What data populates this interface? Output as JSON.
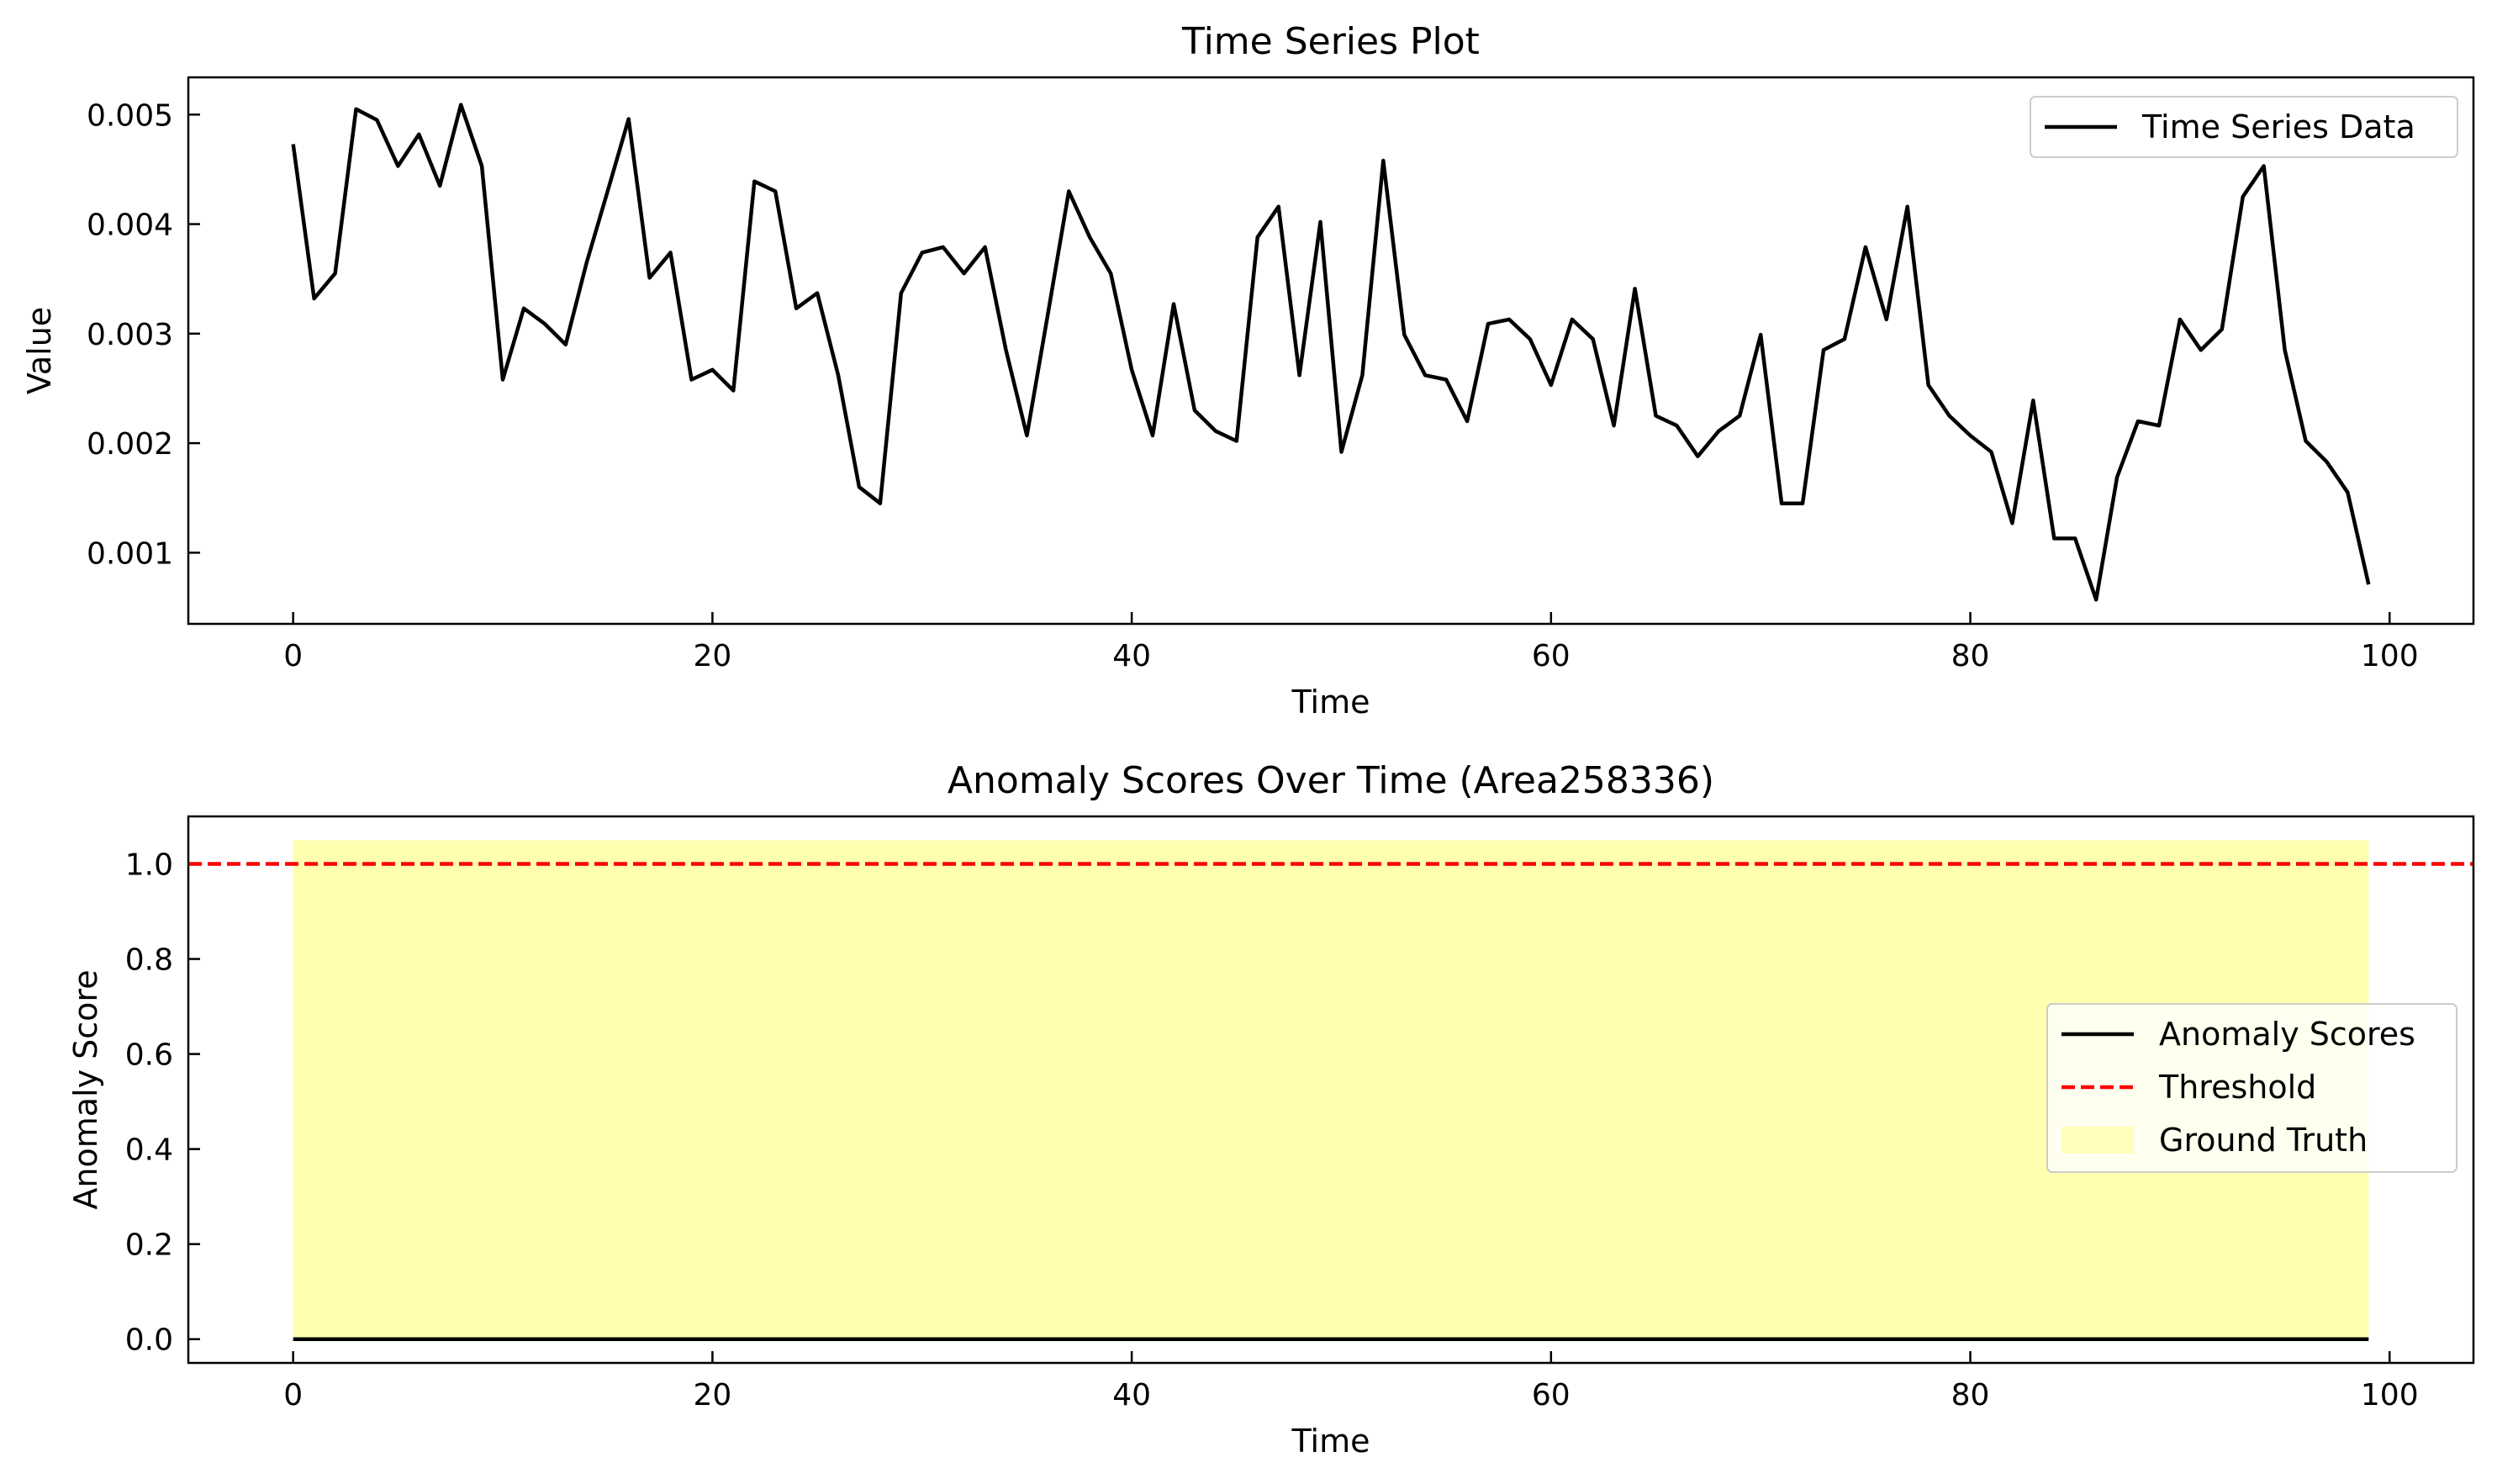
{
  "chart_data": [
    {
      "type": "line",
      "title": "Time Series Plot",
      "xlabel": "Time",
      "ylabel": "Value",
      "xlim": [
        -5,
        104
      ],
      "ylim": [
        0.00035,
        0.00534
      ],
      "xticks": [
        0,
        20,
        40,
        60,
        80,
        100
      ],
      "xtick_labels": [
        "0",
        "20",
        "40",
        "60",
        "80",
        "100"
      ],
      "yticks": [
        0.001,
        0.002,
        0.003,
        0.004,
        0.005
      ],
      "ytick_labels": [
        "0.001",
        "0.002",
        "0.003",
        "0.004",
        "0.005"
      ],
      "legend_position": "upper right",
      "series": [
        {
          "name": "Time Series Data",
          "color": "#000000",
          "x": [
            0,
            1,
            2,
            3,
            4,
            5,
            6,
            7,
            8,
            9,
            10,
            11,
            12,
            13,
            14,
            15,
            16,
            17,
            18,
            19,
            20,
            21,
            22,
            23,
            24,
            25,
            26,
            27,
            28,
            29,
            30,
            31,
            32,
            33,
            34,
            35,
            36,
            37,
            38,
            39,
            40,
            41,
            42,
            43,
            44,
            45,
            46,
            47,
            48,
            49,
            50,
            51,
            52,
            53,
            54,
            55,
            56,
            57,
            58,
            59,
            60,
            61,
            62,
            63,
            64,
            65,
            66,
            67,
            68,
            69,
            70,
            71,
            72,
            73,
            74,
            75,
            76,
            77,
            78,
            79,
            80,
            81,
            82,
            83,
            84,
            85,
            86,
            87,
            88,
            89,
            90,
            91,
            92,
            93,
            94,
            95,
            96,
            97,
            98,
            99
          ],
          "y": [
            0.00473,
            0.00332,
            0.00355,
            0.00505,
            0.00495,
            0.00453,
            0.00482,
            0.00435,
            0.00509,
            0.00453,
            0.00258,
            0.00323,
            0.00309,
            0.0029,
            0.00365,
            0.0043,
            0.00496,
            0.00351,
            0.00374,
            0.00258,
            0.00267,
            0.00248,
            0.00439,
            0.0043,
            0.00323,
            0.00337,
            0.00262,
            0.0016,
            0.00145,
            0.00337,
            0.00374,
            0.00379,
            0.00355,
            0.00379,
            0.00285,
            0.00207,
            0.00318,
            0.0043,
            0.00388,
            0.00355,
            0.00267,
            0.00207,
            0.00327,
            0.0023,
            0.00211,
            0.00202,
            0.00388,
            0.00416,
            0.00262,
            0.00402,
            0.00192,
            0.00262,
            0.00458,
            0.00299,
            0.00262,
            0.00258,
            0.0022,
            0.00309,
            0.00313,
            0.00295,
            0.00253,
            0.00313,
            0.00295,
            0.00216,
            0.00341,
            0.00225,
            0.00216,
            0.00188,
            0.00211,
            0.00225,
            0.00299,
            0.00145,
            0.00145,
            0.00285,
            0.00295,
            0.00379,
            0.00313,
            0.00416,
            0.00253,
            0.00225,
            0.00207,
            0.00192,
            0.00127,
            0.00239,
            0.00113,
            0.00113,
            0.00057,
            0.00169,
            0.0022,
            0.00216,
            0.00313,
            0.00285,
            0.00304,
            0.00425,
            0.00453,
            0.00285,
            0.00202,
            0.00183,
            0.00155,
            0.00071
          ]
        }
      ]
    },
    {
      "type": "line",
      "title": "Anomaly Scores Over Time (Area258336)",
      "xlabel": "Time",
      "ylabel": "Anomaly Score",
      "xlim": [
        -5,
        104
      ],
      "ylim": [
        -0.05,
        1.1
      ],
      "xticks": [
        0,
        20,
        40,
        60,
        80,
        100
      ],
      "xtick_labels": [
        "0",
        "20",
        "40",
        "60",
        "80",
        "100"
      ],
      "yticks": [
        0.0,
        0.2,
        0.4,
        0.6,
        0.8,
        1.0
      ],
      "ytick_labels": [
        "0.0",
        "0.2",
        "0.4",
        "0.6",
        "0.8",
        "1.0"
      ],
      "legend_position": "center right",
      "series": [
        {
          "name": "Anomaly Scores",
          "color": "#000000",
          "style": "solid",
          "x": [
            0,
            99
          ],
          "y": [
            0.0,
            0.0
          ]
        },
        {
          "name": "Threshold",
          "color": "#ff0000",
          "style": "dashed",
          "y_constant": 1.0
        }
      ],
      "shaded_regions": [
        {
          "name": "Ground Truth",
          "color": "#ffffb0",
          "x_start": 0,
          "x_end": 99,
          "y_bottom": 0.0,
          "y_top": 1.05
        }
      ]
    }
  ]
}
